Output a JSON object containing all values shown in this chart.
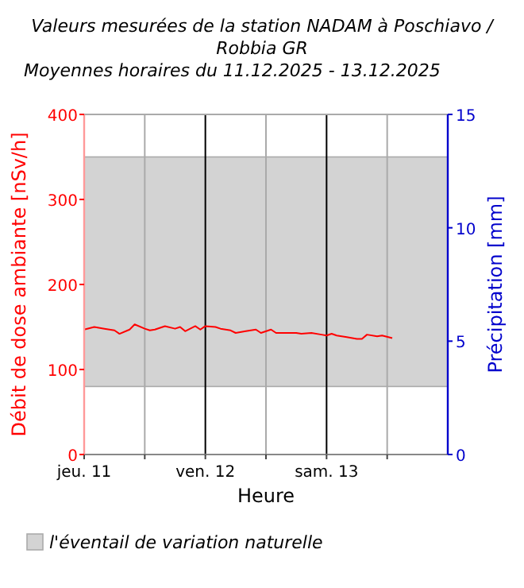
{
  "chart_data": {
    "type": "line",
    "title": "Valeurs mesurées de la station NADAM à Poschiavo / Robbia GR",
    "subtitle": "Moyennes horaires du 11.12.2025 - 13.12.2025",
    "xlabel": "Heure",
    "ylabel": "Débit de dose ambiante [nSv/h]",
    "y2label": "Précipitation [mm]",
    "x": [
      "2025-12-11T00:00",
      "2025-12-11T02:00",
      "2025-12-11T04:00",
      "2025-12-11T06:00",
      "2025-12-11T07:00",
      "2025-12-11T09:00",
      "2025-12-11T10:00",
      "2025-12-11T12:00",
      "2025-12-11T13:00",
      "2025-12-11T14:00",
      "2025-12-11T16:00",
      "2025-12-11T18:00",
      "2025-12-11T19:00",
      "2025-12-11T20:00",
      "2025-12-11T22:00",
      "2025-12-11T23:00",
      "2025-12-12T00:00",
      "2025-12-12T02:00",
      "2025-12-12T03:00",
      "2025-12-12T05:00",
      "2025-12-12T06:00",
      "2025-12-12T08:00",
      "2025-12-12T10:00",
      "2025-12-12T11:00",
      "2025-12-12T13:00",
      "2025-12-12T14:00",
      "2025-12-12T18:00",
      "2025-12-12T19:00",
      "2025-12-12T21:00",
      "2025-12-12T23:00",
      "2025-12-13T00:00",
      "2025-12-13T01:00",
      "2025-12-13T02:00",
      "2025-12-13T04:00",
      "2025-12-13T06:00",
      "2025-12-13T07:00",
      "2025-12-13T08:00",
      "2025-12-13T10:00",
      "2025-12-13T11:00",
      "2025-12-13T13:00"
    ],
    "series": [
      {
        "color": "#ff0000",
        "values": [
          147,
          150,
          148,
          146,
          142,
          147,
          153,
          148,
          146,
          147,
          151,
          148,
          150,
          145,
          151,
          147,
          151,
          150,
          148,
          146,
          143,
          145,
          147,
          143,
          147,
          143,
          143,
          142,
          143,
          141,
          140,
          142,
          140,
          138,
          136,
          136,
          141,
          139,
          140,
          137
        ]
      }
    ],
    "xlim": [
      "2025-12-11T00:00",
      "2025-12-14T00:00"
    ],
    "xticks": [
      {
        "value": "2025-12-11T00:00",
        "label": "jeu. 11"
      },
      {
        "value": "2025-12-11T12:00",
        "label": null
      },
      {
        "value": "2025-12-12T00:00",
        "label": "ven. 12"
      },
      {
        "value": "2025-12-12T12:00",
        "label": null
      },
      {
        "value": "2025-12-13T00:00",
        "label": "sam. 13"
      },
      {
        "value": "2025-12-13T12:00",
        "label": null
      }
    ],
    "ylim": [
      0,
      400
    ],
    "yticks": [
      0,
      100,
      200,
      300,
      400
    ],
    "y2lim": [
      0,
      15
    ],
    "y2ticks": [
      0,
      5,
      10,
      15
    ],
    "bands": [
      {
        "axis": "y",
        "from": 80,
        "to": 350,
        "label": "l'éventail de variation naturelle",
        "color": "#d3d3d3"
      }
    ],
    "grid": "x",
    "legend": "bottom",
    "line_style": "solid",
    "marker": "none"
  }
}
